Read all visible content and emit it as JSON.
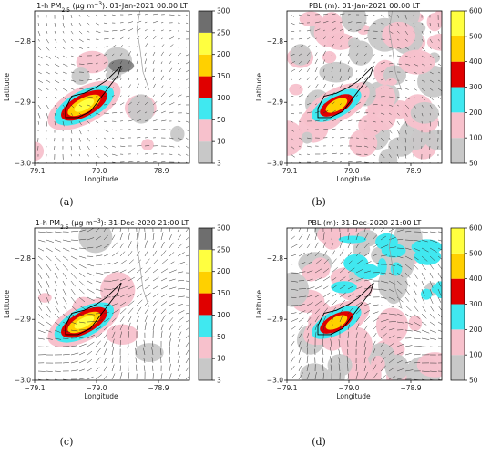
{
  "figure": {
    "panels": [
      {
        "id": "a",
        "title_main": "1-h PM",
        "title_sub": "2.5",
        "title_rest": " (µg m",
        "title_sup": "−3",
        "title_end": "): 01-Jan-2021 00:00 LT",
        "caption": "(a)",
        "xlabel": "Longitude",
        "ylabel": "Latitude"
      },
      {
        "id": "b",
        "title_main": "PBL (m): 01-Jan-2021 00:00 LT",
        "title_sub": "",
        "title_rest": "",
        "title_sup": "",
        "title_end": "",
        "caption": "(b)",
        "xlabel": "Longitude",
        "ylabel": ""
      },
      {
        "id": "c",
        "title_main": "1-h PM",
        "title_sub": "2.5",
        "title_rest": " (µg m",
        "title_sup": "−3",
        "title_end": "): 31-Dec-2020 21:00 LT",
        "caption": "(c)",
        "xlabel": "Longitude",
        "ylabel": "Latitude"
      },
      {
        "id": "d",
        "title_main": "PBL (m): 31-Dec-2020 21:00 LT",
        "title_sub": "",
        "title_rest": "",
        "title_sup": "",
        "title_end": "",
        "caption": "(d)",
        "xlabel": "Longitude",
        "ylabel": ""
      }
    ]
  },
  "chart_data": [
    {
      "type": "heatmap",
      "panel": "a",
      "xlim": [
        -79.1,
        -78.85
      ],
      "ylim": [
        -3.0,
        -2.75
      ],
      "xticks": [
        "−79.1",
        "−79.0",
        "−78.9"
      ],
      "yticks": [
        "−2.8",
        "−2.9",
        "−3.0"
      ],
      "colorbar_levels": [
        "3",
        "10",
        "50",
        "100",
        "150",
        "200",
        "250",
        "300"
      ],
      "colorbar_colors": [
        "#c8c8c8",
        "#f7c1cc",
        "#40e8f0",
        "#e00000",
        "#ffd000",
        "#ffff40",
        "#6e6e6e"
      ]
    },
    {
      "type": "heatmap",
      "panel": "b",
      "xlim": [
        -79.1,
        -78.85
      ],
      "ylim": [
        -3.0,
        -2.75
      ],
      "xticks": [
        "−79.1",
        "−79.0",
        "−78.9"
      ],
      "yticks": [
        "−2.8",
        "−2.9",
        "−3.0"
      ],
      "colorbar_levels": [
        "50",
        "100",
        "200",
        "300",
        "400",
        "500",
        "600"
      ],
      "colorbar_colors": [
        "#c8c8c8",
        "#f7c1cc",
        "#40e8f0",
        "#e00000",
        "#ffd000",
        "#ffff40"
      ]
    },
    {
      "type": "heatmap",
      "panel": "c",
      "xlim": [
        -79.1,
        -78.85
      ],
      "ylim": [
        -3.0,
        -2.75
      ],
      "xticks": [
        "−79.1",
        "−79.0",
        "−78.9"
      ],
      "yticks": [
        "−2.8",
        "−2.9",
        "−3.0"
      ],
      "colorbar_levels": [
        "3",
        "10",
        "50",
        "100",
        "150",
        "200",
        "250",
        "300"
      ],
      "colorbar_colors": [
        "#c8c8c8",
        "#f7c1cc",
        "#40e8f0",
        "#e00000",
        "#ffd000",
        "#ffff40",
        "#6e6e6e"
      ]
    },
    {
      "type": "heatmap",
      "panel": "d",
      "xlim": [
        -79.1,
        -78.85
      ],
      "ylim": [
        -3.0,
        -2.75
      ],
      "xticks": [
        "−79.1",
        "−79.0",
        "−78.9"
      ],
      "yticks": [
        "−2.8",
        "−2.9",
        "−3.0"
      ],
      "colorbar_levels": [
        "50",
        "100",
        "200",
        "300",
        "400",
        "500",
        "600"
      ],
      "colorbar_colors": [
        "#c8c8c8",
        "#f7c1cc",
        "#40e8f0",
        "#e00000",
        "#ffd000",
        "#ffff40"
      ]
    }
  ]
}
